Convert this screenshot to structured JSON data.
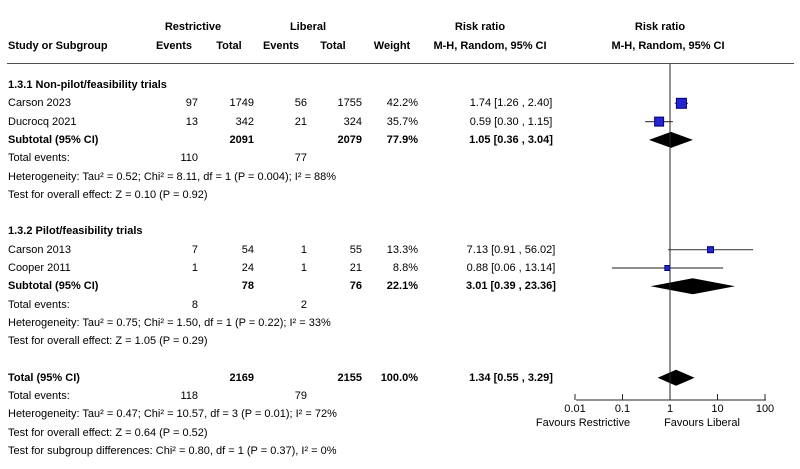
{
  "colors": {
    "marker_fill": "#2525d0",
    "marker_border": "#00007a",
    "ci_line": "#4a4a4a",
    "diamond": "#000000",
    "axis_line": "#262626",
    "rule": "#4d4d4d"
  },
  "header": {
    "group_restrictive": "Restrictive",
    "group_liberal": "Liberal",
    "col_study": "Study or Subgroup",
    "col_events": "Events",
    "col_total": "Total",
    "col_weight": "Weight",
    "effect_title": "Risk ratio",
    "effect_sub": "M-H, Random, 95% CI",
    "plot_title": "Risk ratio",
    "plot_sub": "M-H, Random, 95% CI"
  },
  "chart_data": {
    "type": "forest",
    "effect_measure": "Risk ratio",
    "model": "M-H, Random, 95% CI",
    "axis": {
      "scale": "log10",
      "ticks": [
        0.01,
        0.1,
        1,
        10,
        100
      ],
      "xlim": [
        0.01,
        100
      ],
      "no_effect_line": 1,
      "left_label": "Favours Restrictive",
      "right_label": "Favours Liberal"
    },
    "rows": [
      {
        "type": "subgroup",
        "label": "1.3.1 Non-pilot/feasibility trials"
      },
      {
        "type": "study",
        "label": "Carson 2023",
        "events_r": "97",
        "total_r": "1749",
        "events_l": "56",
        "total_l": "1755",
        "weight": "42.2%",
        "weight_pct": 42.2,
        "ci_text": "1.74 [1.26 , 2.40]",
        "est": 1.74,
        "lo": 1.26,
        "hi": 2.4
      },
      {
        "type": "study",
        "label": "Ducrocq 2021",
        "events_r": "13",
        "total_r": "342",
        "events_l": "21",
        "total_l": "324",
        "weight": "35.7%",
        "weight_pct": 35.7,
        "ci_text": "0.59 [0.30 , 1.15]",
        "est": 0.59,
        "lo": 0.3,
        "hi": 1.15
      },
      {
        "type": "subtotal",
        "label": "Subtotal (95% CI)",
        "total_r": "2091",
        "total_l": "2079",
        "weight": "77.9%",
        "ci_text": "1.05 [0.36 , 3.04]",
        "est": 1.05,
        "lo": 0.36,
        "hi": 3.04
      },
      {
        "type": "events",
        "label": "Total events:",
        "events_r": "110",
        "events_l": "77"
      },
      {
        "type": "note",
        "label": "Heterogeneity: Tau² = 0.52; Chi² = 8.11, df = 1 (P = 0.004); I² = 88%"
      },
      {
        "type": "note",
        "label": "Test for overall effect: Z = 0.10 (P = 0.92)"
      },
      {
        "type": "spacer",
        "label": ""
      },
      {
        "type": "subgroup",
        "label": "1.3.2 Pilot/feasibility trials"
      },
      {
        "type": "study",
        "label": "Carson 2013",
        "events_r": "7",
        "total_r": "54",
        "events_l": "1",
        "total_l": "55",
        "weight": "13.3%",
        "weight_pct": 13.3,
        "ci_text": "7.13 [0.91 , 56.02]",
        "est": 7.13,
        "lo": 0.91,
        "hi": 56.02
      },
      {
        "type": "study",
        "label": "Cooper 2011",
        "events_r": "1",
        "total_r": "24",
        "events_l": "1",
        "total_l": "21",
        "weight": "8.8%",
        "weight_pct": 8.8,
        "ci_text": "0.88 [0.06 , 13.14]",
        "est": 0.88,
        "lo": 0.06,
        "hi": 13.14
      },
      {
        "type": "subtotal",
        "label": "Subtotal (95% CI)",
        "total_r": "78",
        "total_l": "76",
        "weight": "22.1%",
        "ci_text": "3.01 [0.39 , 23.36]",
        "est": 3.01,
        "lo": 0.39,
        "hi": 23.36
      },
      {
        "type": "events",
        "label": "Total events:",
        "events_r": "8",
        "events_l": "2"
      },
      {
        "type": "note",
        "label": "Heterogeneity: Tau² = 0.75; Chi² = 1.50, df = 1 (P = 0.22); I² = 33%"
      },
      {
        "type": "note",
        "label": "Test for overall effect: Z = 1.05 (P = 0.29)"
      },
      {
        "type": "spacer",
        "label": ""
      },
      {
        "type": "total",
        "label": "Total (95% CI)",
        "total_r": "2169",
        "total_l": "2155",
        "weight": "100.0%",
        "ci_text": "1.34 [0.55 , 3.29]",
        "est": 1.34,
        "lo": 0.55,
        "hi": 3.29
      },
      {
        "type": "events",
        "label": "Total events:",
        "events_r": "118",
        "events_l": "79"
      },
      {
        "type": "note",
        "label": "Heterogeneity: Tau² = 0.47; Chi² = 10.57, df = 3 (P = 0.01); I² = 72%"
      },
      {
        "type": "note",
        "label": "Test for overall effect: Z = 0.64 (P = 0.52)"
      },
      {
        "type": "note",
        "label": "Test for subgroup differences: Chi² = 0.80, df = 1 (P = 0.37), I² = 0%"
      }
    ]
  }
}
